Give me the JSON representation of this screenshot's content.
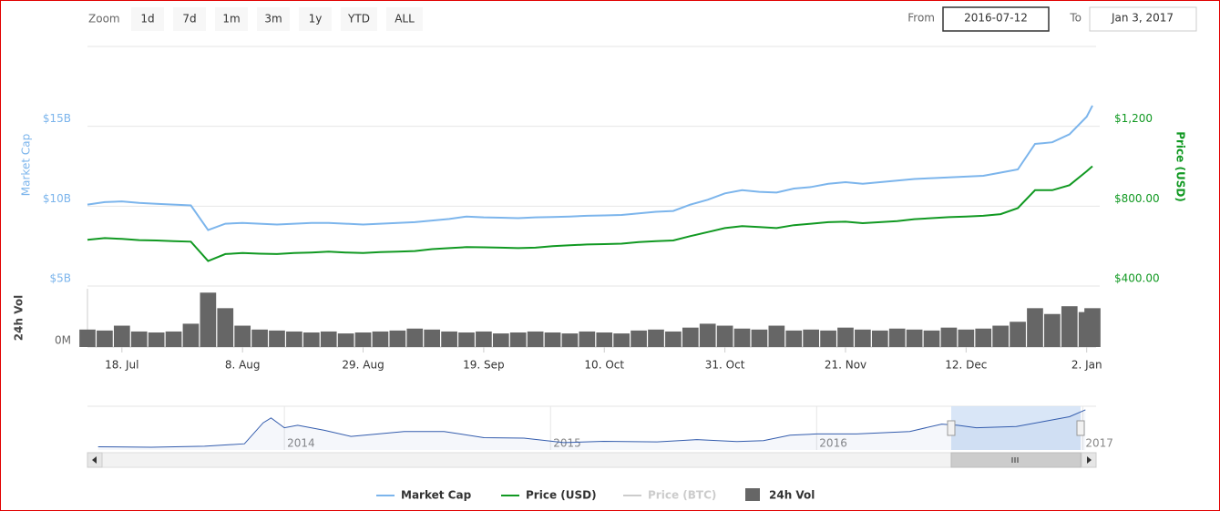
{
  "range_selector": {
    "zoom_label": "Zoom",
    "buttons": [
      "1d",
      "7d",
      "1m",
      "3m",
      "1y",
      "YTD",
      "ALL"
    ],
    "from_label": "From",
    "from_value": "2016-07-12",
    "to_label": "To",
    "to_value": "Jan 3, 2017"
  },
  "chart_data": {
    "type": "line",
    "x": [
      "2016-07-12",
      "2016-07-15",
      "2016-07-18",
      "2016-07-21",
      "2016-07-24",
      "2016-07-27",
      "2016-07-30",
      "2016-08-02",
      "2016-08-05",
      "2016-08-08",
      "2016-08-11",
      "2016-08-14",
      "2016-08-17",
      "2016-08-20",
      "2016-08-23",
      "2016-08-26",
      "2016-08-29",
      "2016-09-01",
      "2016-09-04",
      "2016-09-07",
      "2016-09-10",
      "2016-09-13",
      "2016-09-16",
      "2016-09-19",
      "2016-09-22",
      "2016-09-25",
      "2016-09-28",
      "2016-10-01",
      "2016-10-04",
      "2016-10-07",
      "2016-10-10",
      "2016-10-13",
      "2016-10-16",
      "2016-10-19",
      "2016-10-22",
      "2016-10-25",
      "2016-10-28",
      "2016-10-31",
      "2016-11-03",
      "2016-11-06",
      "2016-11-09",
      "2016-11-12",
      "2016-11-15",
      "2016-11-18",
      "2016-11-21",
      "2016-11-24",
      "2016-11-27",
      "2016-11-30",
      "2016-12-03",
      "2016-12-06",
      "2016-12-09",
      "2016-12-12",
      "2016-12-15",
      "2016-12-18",
      "2016-12-21",
      "2016-12-24",
      "2016-12-27",
      "2016-12-30",
      "2017-01-02",
      "2017-01-03"
    ],
    "xlim": [
      "2016-07-12",
      "2017-01-03"
    ],
    "xticks": [
      {
        "value": "2016-07-18",
        "label": "18. Jul"
      },
      {
        "value": "2016-08-08",
        "label": "8. Aug"
      },
      {
        "value": "2016-08-29",
        "label": "29. Aug"
      },
      {
        "value": "2016-09-19",
        "label": "19. Sep"
      },
      {
        "value": "2016-10-10",
        "label": "10. Oct"
      },
      {
        "value": "2016-10-31",
        "label": "31. Oct"
      },
      {
        "value": "2016-11-21",
        "label": "21. Nov"
      },
      {
        "value": "2016-12-12",
        "label": "12. Dec"
      },
      {
        "value": "2017-01-02",
        "label": "2. Jan"
      }
    ],
    "ylabel": "Market Cap",
    "ylim": [
      5,
      20
    ],
    "yticks": [
      {
        "value": 5,
        "label": "$5B"
      },
      {
        "value": 10,
        "label": "$10B"
      },
      {
        "value": 15,
        "label": "$15B"
      }
    ],
    "y2label": "Price (USD)",
    "y2lim": [
      400,
      1600
    ],
    "y2ticks": [
      {
        "value": 400,
        "label": "$400.00"
      },
      {
        "value": 800,
        "label": "$800.00"
      },
      {
        "value": 1200,
        "label": "$1,200"
      }
    ],
    "vol_label": "24h Vol",
    "vol_ylim": [
      0,
      300
    ],
    "vol_yticks": [
      {
        "value": 0,
        "label": "0M"
      }
    ],
    "grid": true,
    "series": [
      {
        "name": "Market Cap",
        "color": "#7cb5ec",
        "kind": "line",
        "axis": "y",
        "visible": true,
        "values": [
          10.1,
          10.25,
          10.3,
          10.2,
          10.15,
          10.1,
          10.05,
          8.5,
          8.9,
          8.95,
          8.9,
          8.85,
          8.9,
          8.95,
          8.95,
          8.9,
          8.85,
          8.9,
          8.95,
          9.0,
          9.1,
          9.2,
          9.35,
          9.3,
          9.28,
          9.25,
          9.3,
          9.32,
          9.35,
          9.4,
          9.42,
          9.45,
          9.55,
          9.65,
          9.7,
          10.1,
          10.4,
          10.8,
          11.0,
          10.9,
          10.85,
          11.1,
          11.2,
          11.4,
          11.5,
          11.4,
          11.5,
          11.6,
          11.7,
          11.75,
          11.8,
          11.85,
          11.9,
          12.1,
          12.3,
          13.9,
          14.0,
          14.5,
          15.6,
          16.3
        ]
      },
      {
        "name": "Price (USD)",
        "color": "#119922",
        "kind": "line",
        "axis": "y2",
        "visible": true,
        "values": [
          632,
          640,
          636,
          630,
          628,
          625,
          622,
          525,
          560,
          565,
          562,
          560,
          565,
          568,
          572,
          568,
          565,
          570,
          572,
          575,
          585,
          590,
          595,
          594,
          592,
          590,
          592,
          600,
          604,
          608,
          610,
          612,
          620,
          625,
          628,
          650,
          670,
          690,
          700,
          695,
          690,
          705,
          712,
          720,
          722,
          715,
          720,
          725,
          735,
          740,
          745,
          748,
          752,
          760,
          790,
          880,
          880,
          905,
          975,
          1000
        ]
      },
      {
        "name": "Price (BTC)",
        "color": "#cccccc",
        "kind": "line",
        "axis": "y2",
        "visible": false
      },
      {
        "name": "24h Vol",
        "color": "#666666",
        "kind": "column",
        "axis": "vol",
        "visible": true,
        "values": [
          90,
          85,
          110,
          80,
          75,
          80,
          120,
          280,
          200,
          110,
          90,
          85,
          80,
          75,
          80,
          70,
          75,
          80,
          85,
          95,
          90,
          80,
          75,
          80,
          70,
          75,
          80,
          75,
          70,
          80,
          75,
          70,
          85,
          90,
          80,
          100,
          120,
          110,
          95,
          90,
          110,
          85,
          90,
          85,
          100,
          90,
          85,
          95,
          90,
          85,
          100,
          90,
          95,
          110,
          130,
          200,
          170,
          210,
          180,
          200
        ]
      }
    ],
    "navigator": {
      "color": "#335cad",
      "x": [
        2013.3,
        2013.5,
        2013.7,
        2013.85,
        2013.92,
        2013.95,
        2014.0,
        2014.05,
        2014.15,
        2014.25,
        2014.45,
        2014.6,
        2014.75,
        2014.9,
        2015.05,
        2015.2,
        2015.4,
        2015.55,
        2015.7,
        2015.8,
        2015.9,
        2016.0,
        2016.15,
        2016.35,
        2016.47,
        2016.53,
        2016.6,
        2016.75,
        2016.85,
        2016.95,
        2017.01
      ],
      "values": [
        1.3,
        1.1,
        1.5,
        2.5,
        11,
        13,
        9,
        10,
        8,
        5.5,
        7.5,
        7.5,
        5,
        4.8,
        3,
        3.5,
        3.3,
        4.2,
        3.4,
        3.8,
        6,
        6.5,
        6.5,
        7.5,
        10.5,
        10,
        9,
        9.5,
        11.5,
        13.5,
        16.3
      ],
      "xlim": [
        2013.26,
        2017.05
      ],
      "ylim": [
        0,
        17
      ],
      "xticks": [
        2014,
        2015,
        2016,
        2017
      ]
    }
  }
}
